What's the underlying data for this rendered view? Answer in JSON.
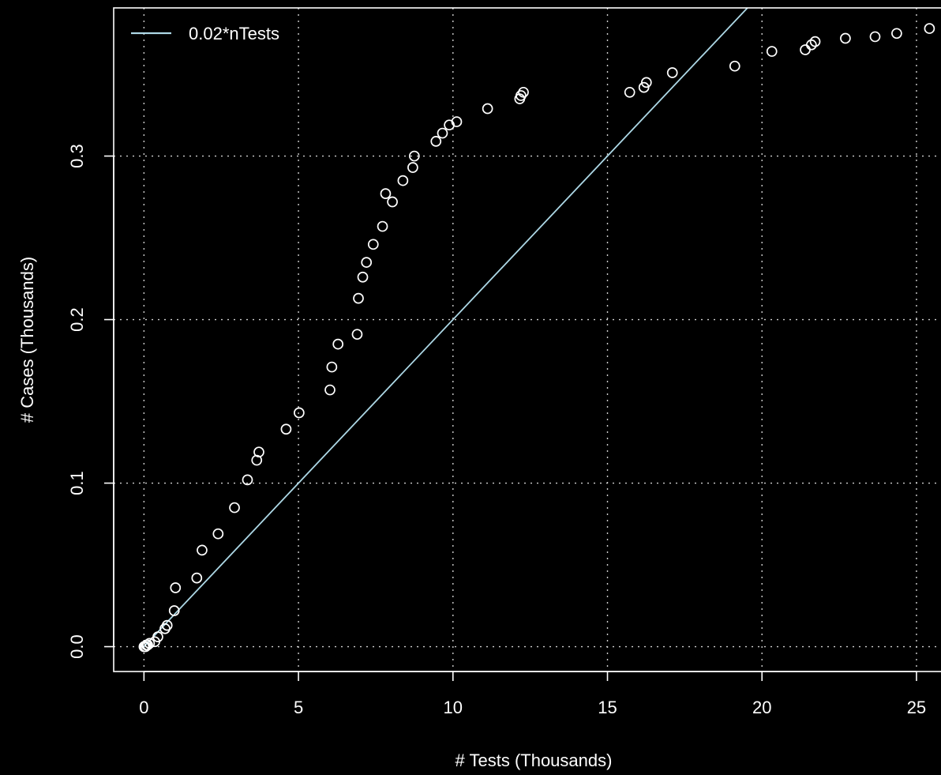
{
  "chart_data": {
    "type": "scatter",
    "title": "",
    "xlabel": "# Tests (Thousands)",
    "ylabel": "# Cases (Thousands)",
    "xlim": [
      -0.98,
      26.1
    ],
    "ylim": [
      -0.0152,
      0.3906
    ],
    "xticks": [
      0,
      5,
      10,
      15,
      20,
      25
    ],
    "yticks": [
      0.0,
      0.1,
      0.2,
      0.3
    ],
    "xtick_labels": [
      "0",
      "5",
      "10",
      "15",
      "20",
      "25"
    ],
    "ytick_labels": [
      "0.0",
      "0.1",
      "0.2",
      "0.3"
    ],
    "grid": true,
    "legend_position": "top-left",
    "series": [
      {
        "kind": "points",
        "color": "#ffffff",
        "x": [
          0.0,
          0.02,
          0.05,
          0.08,
          0.12,
          0.18,
          0.35,
          0.45,
          0.68,
          0.75,
          0.98,
          1.02,
          1.71,
          1.88,
          2.4,
          2.93,
          3.35,
          3.65,
          3.72,
          4.6,
          5.02,
          6.02,
          6.08,
          6.28,
          6.9,
          6.94,
          7.08,
          7.2,
          7.42,
          7.72,
          7.82,
          8.04,
          8.38,
          8.7,
          8.75,
          9.45,
          9.66,
          9.88,
          10.12,
          11.12,
          12.16,
          12.2,
          12.28,
          15.72,
          16.18,
          16.26,
          17.1,
          19.12,
          20.32,
          21.4,
          21.6,
          21.72,
          22.7,
          23.66,
          24.36,
          25.42
        ],
        "y": [
          0.0,
          0.0,
          0.0,
          0.001,
          0.001,
          0.002,
          0.003,
          0.006,
          0.011,
          0.013,
          0.022,
          0.036,
          0.042,
          0.059,
          0.069,
          0.085,
          0.102,
          0.114,
          0.119,
          0.133,
          0.143,
          0.157,
          0.171,
          0.185,
          0.191,
          0.213,
          0.226,
          0.235,
          0.246,
          0.257,
          0.277,
          0.272,
          0.285,
          0.293,
          0.3,
          0.309,
          0.314,
          0.319,
          0.321,
          0.329,
          0.335,
          0.337,
          0.339,
          0.339,
          0.342,
          0.345,
          0.351,
          0.355,
          0.364,
          0.365,
          0.368,
          0.37,
          0.372,
          0.373,
          0.375,
          0.378
        ]
      },
      {
        "kind": "line",
        "name": "0.02*nTests",
        "color": "#add8e6",
        "slope": 0.02,
        "intercept": 0
      }
    ]
  }
}
